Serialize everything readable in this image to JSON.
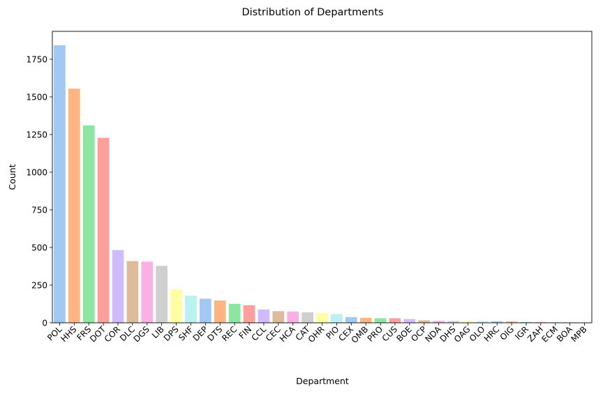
{
  "chart_data": {
    "type": "bar",
    "title": "Distribution of Departments",
    "xlabel": "Department",
    "ylabel": "Count",
    "ylim": [
      0,
      1935
    ],
    "yticks": [
      0,
      250,
      500,
      750,
      1000,
      1250,
      1500,
      1750
    ],
    "grid": false,
    "legend": "none",
    "categories": [
      "POL",
      "HHS",
      "FRS",
      "DOT",
      "COR",
      "DLC",
      "DGS",
      "LIB",
      "DPS",
      "SHF",
      "DEP",
      "DTS",
      "REC",
      "FIN",
      "CCL",
      "CEC",
      "HCA",
      "CAT",
      "OHR",
      "PIO",
      "CEX",
      "OMB",
      "PRO",
      "CUS",
      "BOE",
      "OCP",
      "NDA",
      "DHS",
      "OAG",
      "OLO",
      "HRC",
      "OIG",
      "IGR",
      "ZAH",
      "ECM",
      "BOA",
      "MPB"
    ],
    "values": [
      1843,
      1555,
      1311,
      1228,
      483,
      410,
      406,
      378,
      222,
      180,
      160,
      148,
      126,
      117,
      88,
      77,
      75,
      70,
      66,
      58,
      38,
      33,
      30,
      30,
      25,
      17,
      13,
      12,
      12,
      11,
      10,
      9,
      5,
      4,
      3,
      3,
      2
    ],
    "colors": [
      "#a1c9f4",
      "#ffb482",
      "#8de5a1",
      "#ff9f9b",
      "#d0bbff",
      "#debb9b",
      "#fab0e4",
      "#cfcfcf",
      "#fffea3",
      "#b9f2f0"
    ]
  }
}
